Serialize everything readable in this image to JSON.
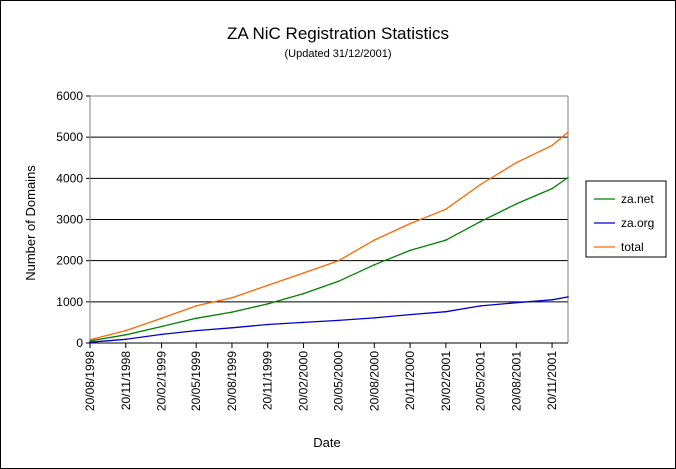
{
  "chart_data": {
    "type": "line",
    "title": "ZA NiC Registration Statistics",
    "subtitle": "(Updated 31/12/2001)",
    "xlabel": "Date",
    "ylabel": "Number of Domains",
    "ylim": [
      0,
      6000
    ],
    "yticks": [
      "0",
      "1000",
      "2000",
      "3000",
      "4000",
      "5000",
      "6000"
    ],
    "xlim": [
      "20/08/1998",
      "31/12/2001"
    ],
    "xticks": [
      "20/08/1998",
      "20/11/1998",
      "20/02/1999",
      "20/05/1999",
      "20/08/1999",
      "20/11/1999",
      "20/02/2000",
      "20/05/2000",
      "20/08/2000",
      "20/11/2000",
      "20/02/2001",
      "20/05/2001",
      "20/08/2001",
      "20/11/2001"
    ],
    "grid": "horizontal",
    "legend_position": "right",
    "x": [
      "20/08/1998",
      "20/11/1998",
      "20/02/1999",
      "20/05/1999",
      "20/08/1999",
      "20/11/1999",
      "20/02/2000",
      "20/05/2000",
      "20/08/2000",
      "20/11/2000",
      "20/02/2001",
      "20/05/2001",
      "20/08/2001",
      "20/11/2001",
      "31/12/2001"
    ],
    "series": [
      {
        "name": "za.net",
        "color": "#008000",
        "values": [
          50,
          200,
          400,
          600,
          750,
          950,
          1200,
          1500,
          1900,
          2250,
          2500,
          2950,
          3380,
          3750,
          4020
        ]
      },
      {
        "name": "za.org",
        "color": "#0000cc",
        "values": [
          20,
          90,
          210,
          300,
          370,
          450,
          500,
          550,
          610,
          690,
          760,
          900,
          980,
          1050,
          1120
        ]
      },
      {
        "name": "total",
        "color": "#ff6600",
        "values": [
          80,
          300,
          600,
          900,
          1100,
          1400,
          1700,
          2000,
          2500,
          2900,
          3250,
          3850,
          4380,
          4800,
          5120
        ]
      }
    ]
  }
}
